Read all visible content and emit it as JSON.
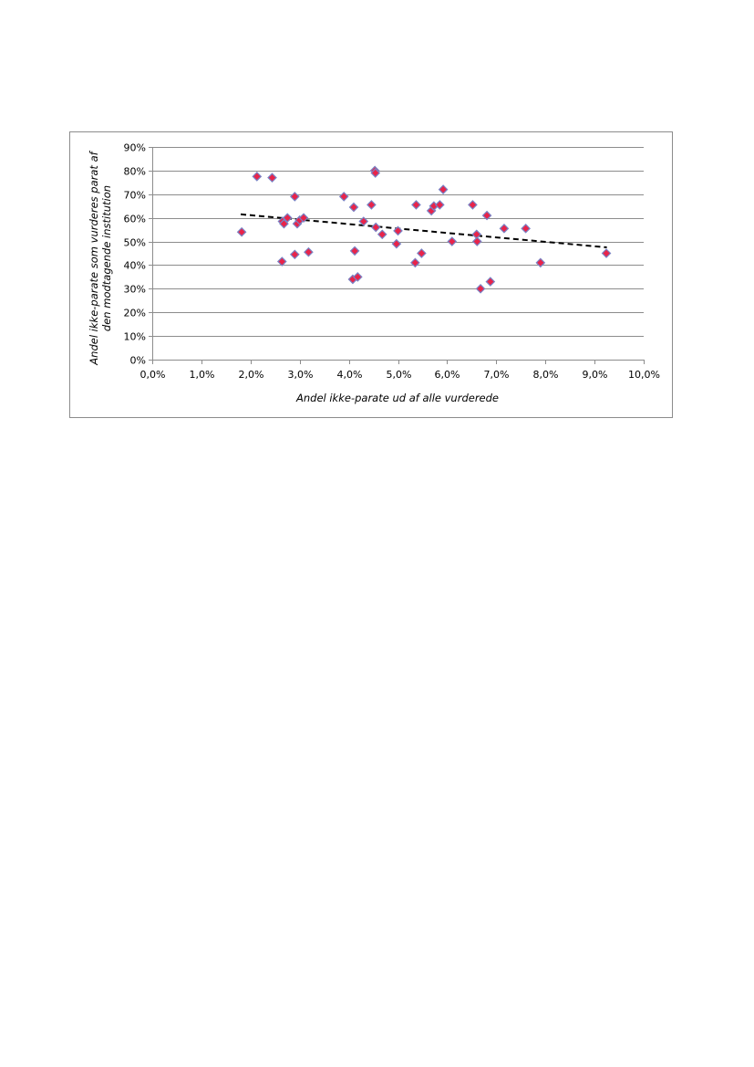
{
  "chart_data": {
    "type": "scatter",
    "title": "",
    "xlabel": "Andel ikke-parate ud af alle vurderede",
    "ylabel_lines": [
      "Andel ikke-parate som vurderes parat af",
      "den modtagende institution"
    ],
    "xlim": [
      0,
      0.1
    ],
    "ylim": [
      0,
      0.9
    ],
    "x_ticks": [
      0,
      0.01,
      0.02,
      0.03,
      0.04,
      0.05,
      0.06,
      0.07,
      0.08,
      0.09,
      0.1
    ],
    "x_tick_labels": [
      "0,0%",
      "1,0%",
      "2,0%",
      "3,0%",
      "4,0%",
      "5,0%",
      "6,0%",
      "7,0%",
      "8,0%",
      "9,0%",
      "10,0%"
    ],
    "y_ticks": [
      0,
      0.1,
      0.2,
      0.3,
      0.4,
      0.5,
      0.6,
      0.7,
      0.8,
      0.9
    ],
    "y_tick_labels": [
      "0%",
      "10%",
      "20%",
      "30%",
      "40%",
      "50%",
      "60%",
      "70%",
      "80%",
      "90%"
    ],
    "grid": "horizontal",
    "legend": "none",
    "points": [
      [
        0.0182,
        0.54
      ],
      [
        0.0213,
        0.775
      ],
      [
        0.0244,
        0.77
      ],
      [
        0.0264,
        0.415
      ],
      [
        0.0265,
        0.585
      ],
      [
        0.0268,
        0.575
      ],
      [
        0.0275,
        0.6
      ],
      [
        0.029,
        0.445
      ],
      [
        0.029,
        0.69
      ],
      [
        0.0295,
        0.575
      ],
      [
        0.03,
        0.59
      ],
      [
        0.0308,
        0.6
      ],
      [
        0.0318,
        0.455
      ],
      [
        0.039,
        0.69
      ],
      [
        0.0408,
        0.34
      ],
      [
        0.041,
        0.645
      ],
      [
        0.0412,
        0.46
      ],
      [
        0.0418,
        0.35
      ],
      [
        0.043,
        0.585
      ],
      [
        0.0446,
        0.655
      ],
      [
        0.0453,
        0.8
      ],
      [
        0.0454,
        0.79
      ],
      [
        0.0455,
        0.56
      ],
      [
        0.0468,
        0.53
      ],
      [
        0.0497,
        0.49
      ],
      [
        0.05,
        0.545
      ],
      [
        0.0535,
        0.41
      ],
      [
        0.0537,
        0.655
      ],
      [
        0.0548,
        0.45
      ],
      [
        0.0568,
        0.63
      ],
      [
        0.0573,
        0.65
      ],
      [
        0.0585,
        0.655
      ],
      [
        0.0592,
        0.72
      ],
      [
        0.061,
        0.5
      ],
      [
        0.0652,
        0.655
      ],
      [
        0.066,
        0.53
      ],
      [
        0.0661,
        0.5
      ],
      [
        0.0668,
        0.3
      ],
      [
        0.0681,
        0.61
      ],
      [
        0.0688,
        0.33
      ],
      [
        0.0716,
        0.555
      ],
      [
        0.076,
        0.555
      ],
      [
        0.079,
        0.41
      ],
      [
        0.0924,
        0.45
      ]
    ],
    "trendline": {
      "style": "dashed",
      "color": "#000000",
      "x": [
        0.018,
        0.0925
      ],
      "y": [
        0.615,
        0.475
      ]
    },
    "marker": {
      "shape": "diamond",
      "fill": "#e8244a",
      "stroke": "#7a82c4"
    },
    "colors": {
      "grid": "#8c8c8c",
      "axis": "#8c8c8c",
      "frame": "#8c8c8c"
    }
  }
}
